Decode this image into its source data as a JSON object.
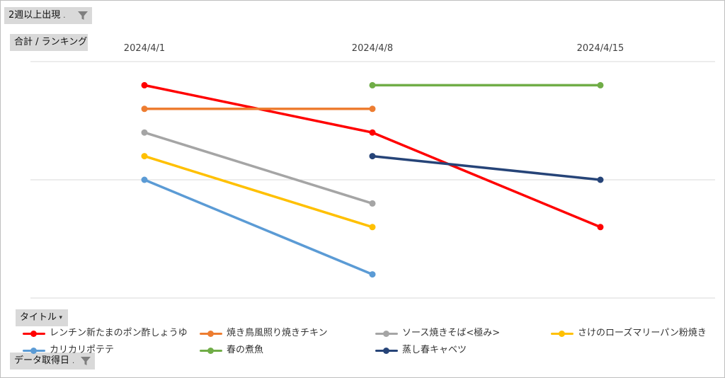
{
  "pivot": {
    "filter_label": "2週以上出現",
    "value_label": "合計 / ランキング",
    "legend_field_label": "タイトル",
    "axis_field_label": "データ取得日"
  },
  "chart_data": {
    "type": "line",
    "categories": [
      "2024/4/1",
      "2024/4/8",
      "2024/4/15"
    ],
    "y_reversed": true,
    "ylim": [
      0,
      10
    ],
    "grid": true,
    "legend_position": "bottom",
    "series": [
      {
        "name": "レンチン新たまのポン酢しょうゆ",
        "color": "#ff0000",
        "values": [
          1,
          3,
          7
        ]
      },
      {
        "name": "焼き鳥風照り焼きチキン",
        "color": "#ed7d31",
        "values": [
          2,
          2,
          null
        ]
      },
      {
        "name": "ソース焼きそば<極み>",
        "color": "#a5a5a5",
        "values": [
          3,
          6,
          null
        ]
      },
      {
        "name": "さけのローズマリーパン粉焼き",
        "color": "#ffc000",
        "values": [
          4,
          7,
          null
        ]
      },
      {
        "name": "カリカリポテテ",
        "color": "#5b9bd5",
        "values": [
          5,
          9,
          null
        ]
      },
      {
        "name": "春の煮魚",
        "color": "#70ad47",
        "values": [
          null,
          1,
          1
        ]
      },
      {
        "name": "蒸し春キャベツ",
        "color": "#264478",
        "values": [
          null,
          4,
          5
        ]
      }
    ]
  }
}
